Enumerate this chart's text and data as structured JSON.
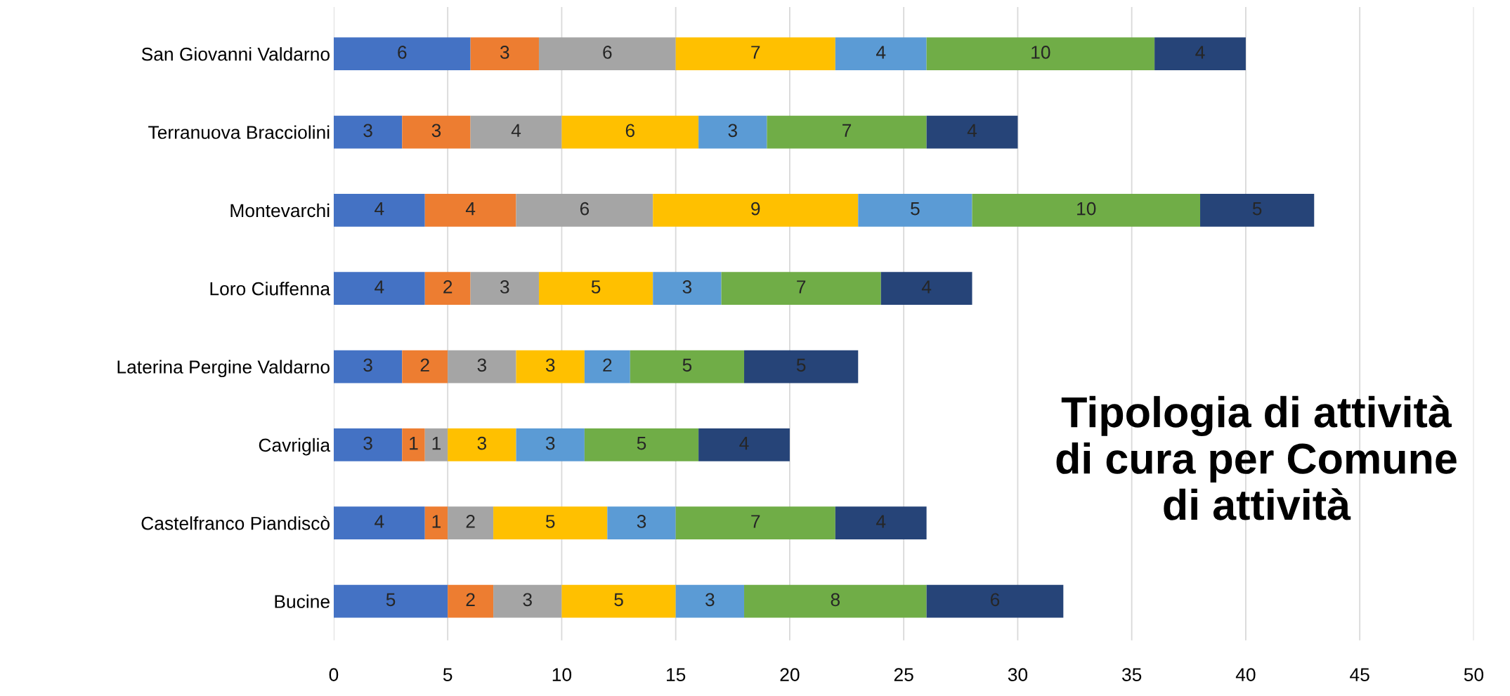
{
  "chart_data": {
    "type": "bar",
    "orientation": "horizontal",
    "stacked": true,
    "title": "Tipologia di attività di cura per Comune di attività",
    "categories": [
      "San Giovanni Valdarno",
      "Terranuova Bracciolini",
      "Montevarchi",
      "Loro Ciuffenna",
      "Laterina Pergine Valdarno",
      "Cavriglia",
      "Castelfranco Piandiscò",
      "Bucine"
    ],
    "series": [
      {
        "color": "#4472c4",
        "values": [
          6,
          3,
          4,
          4,
          3,
          3,
          4,
          5
        ]
      },
      {
        "color": "#ed7d31",
        "values": [
          3,
          3,
          4,
          2,
          2,
          1,
          1,
          2
        ]
      },
      {
        "color": "#a5a5a5",
        "values": [
          6,
          4,
          6,
          3,
          3,
          1,
          2,
          3
        ]
      },
      {
        "color": "#ffc000",
        "values": [
          7,
          6,
          9,
          5,
          3,
          3,
          5,
          5
        ]
      },
      {
        "color": "#5b9bd5",
        "values": [
          4,
          3,
          5,
          3,
          2,
          3,
          3,
          3
        ]
      },
      {
        "color": "#70ad47",
        "values": [
          10,
          7,
          10,
          7,
          5,
          5,
          7,
          8
        ]
      },
      {
        "color": "#264478",
        "values": [
          4,
          4,
          5,
          4,
          5,
          4,
          4,
          6
        ]
      }
    ],
    "xlim": [
      0,
      50
    ],
    "xticks": [
      0,
      5,
      10,
      15,
      20,
      25,
      30,
      35,
      40,
      45,
      50
    ],
    "grid": "x",
    "data_labels": true,
    "legend": false
  }
}
